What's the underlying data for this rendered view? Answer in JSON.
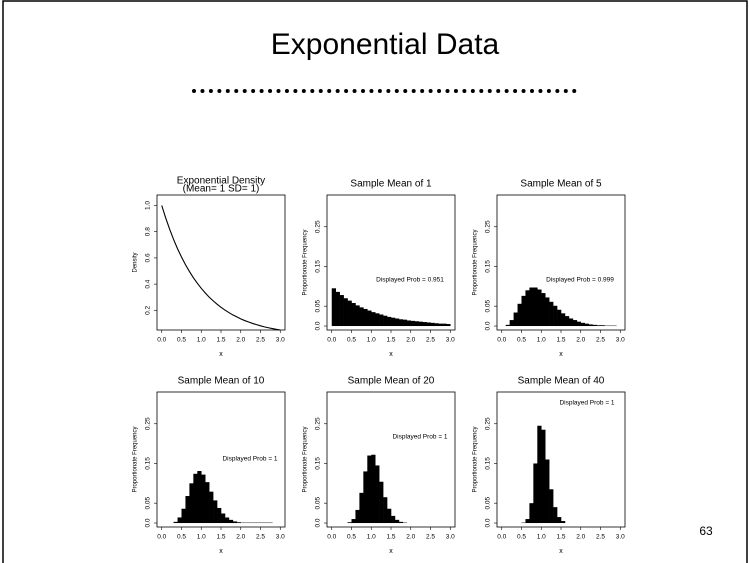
{
  "slide": {
    "title": "Exponential Data",
    "page_number": 63
  },
  "chart_data": [
    {
      "type": "line",
      "title": "Exponential Density",
      "subtitle": "(Mean= 1 SD= 1)",
      "x_label": "x",
      "y_label": "Density",
      "color": "#000000",
      "x": [
        0,
        0.1,
        0.2,
        0.3,
        0.4,
        0.5,
        0.6,
        0.7,
        0.8,
        0.9,
        1,
        1.1,
        1.2,
        1.3,
        1.4,
        1.5,
        1.6,
        1.7,
        1.8,
        1.9,
        2,
        2.1,
        2.2,
        2.3,
        2.4,
        2.5,
        2.6,
        2.7,
        2.8,
        2.9,
        3
      ],
      "values": [
        1,
        0.905,
        0.819,
        0.741,
        0.67,
        0.607,
        0.549,
        0.497,
        0.449,
        0.407,
        0.368,
        0.333,
        0.301,
        0.273,
        0.247,
        0.223,
        0.202,
        0.183,
        0.165,
        0.15,
        0.135,
        0.122,
        0.111,
        0.1,
        0.091,
        0.082,
        0.074,
        0.067,
        0.061,
        0.055,
        0.05
      ],
      "xlim": [
        -0.12,
        3.12
      ],
      "ylim": [
        0.05,
        1.08
      ],
      "xticks": [
        {
          "value": 0,
          "label": "0.0"
        },
        0.5,
        {
          "value": 1,
          "label": "1.0"
        },
        1.5,
        {
          "value": 2,
          "label": "2.0"
        },
        2.5,
        {
          "value": 3,
          "label": "3.0"
        }
      ],
      "yticks": [
        0.2,
        0.4,
        0.6,
        0.8,
        {
          "value": 1,
          "label": "1.0"
        }
      ]
    },
    {
      "type": "histogram",
      "title": "Sample Mean of 1",
      "x_label": "x",
      "y_label": "Proportionate Frequency",
      "annotation": "Displayed Prob = 0.951",
      "color": "#000000",
      "bins": [
        0,
        0.1,
        0.2,
        0.3,
        0.4,
        0.5,
        0.6,
        0.7,
        0.8,
        0.9,
        1,
        1.1,
        1.2,
        1.3,
        1.4,
        1.5,
        1.6,
        1.7,
        1.8,
        1.9,
        2,
        2.1,
        2.2,
        2.3,
        2.4,
        2.5,
        2.6,
        2.7,
        2.8,
        2.9,
        3
      ],
      "values": [
        0.095,
        0.086,
        0.078,
        0.07,
        0.064,
        0.058,
        0.052,
        0.047,
        0.043,
        0.039,
        0.035,
        0.032,
        0.029,
        0.026,
        0.023,
        0.021,
        0.019,
        0.017,
        0.016,
        0.014,
        0.013,
        0.012,
        0.011,
        0.01,
        0.009,
        0.008,
        0.007,
        0.006,
        0.006,
        0.005
      ],
      "xlim": [
        -0.12,
        3.12
      ],
      "ylim": [
        -0.01,
        0.33
      ],
      "xticks": [
        {
          "value": 0,
          "label": "0.0"
        },
        0.5,
        {
          "value": 1,
          "label": "1.0"
        },
        1.5,
        {
          "value": 2,
          "label": "2.0"
        },
        2.5,
        {
          "value": 3,
          "label": "3.0"
        }
      ],
      "yticks": [
        {
          "value": 0,
          "label": "0.0"
        },
        0.05,
        0.15,
        0.25
      ]
    },
    {
      "type": "histogram",
      "title": "Sample Mean of 5",
      "x_label": "x",
      "y_label": "Proportionate Frequency",
      "annotation": "Displayed Prob = 0.999",
      "color": "#000000",
      "bins": [
        0,
        0.1,
        0.2,
        0.3,
        0.4,
        0.5,
        0.6,
        0.7,
        0.8,
        0.9,
        1,
        1.1,
        1.2,
        1.3,
        1.4,
        1.5,
        1.6,
        1.7,
        1.8,
        1.9,
        2,
        2.1,
        2.2,
        2.3,
        2.4,
        2.5,
        2.6,
        2.7,
        2.8,
        2.9,
        3
      ],
      "values": [
        0,
        0.003,
        0.015,
        0.034,
        0.056,
        0.076,
        0.09,
        0.097,
        0.097,
        0.092,
        0.083,
        0.072,
        0.061,
        0.051,
        0.041,
        0.032,
        0.025,
        0.019,
        0.015,
        0.011,
        0.008,
        0.006,
        0.004,
        0.003,
        0.002,
        0.002,
        0.001,
        0.001,
        0.001,
        0
      ],
      "xlim": [
        -0.12,
        3.12
      ],
      "ylim": [
        -0.01,
        0.33
      ],
      "xticks": [
        {
          "value": 0,
          "label": "0.0"
        },
        0.5,
        {
          "value": 1,
          "label": "1.0"
        },
        1.5,
        {
          "value": 2,
          "label": "2.0"
        },
        2.5,
        {
          "value": 3,
          "label": "3.0"
        }
      ],
      "yticks": [
        {
          "value": 0,
          "label": "0.0"
        },
        0.05,
        0.15,
        0.25
      ]
    },
    {
      "type": "histogram",
      "title": "Sample Mean of 10",
      "x_label": "x",
      "y_label": "Proportionate Frequency",
      "annotation": "Displayed Prob = 1",
      "color": "#000000",
      "bins": [
        0,
        0.1,
        0.2,
        0.3,
        0.4,
        0.5,
        0.6,
        0.7,
        0.8,
        0.9,
        1,
        1.1,
        1.2,
        1.3,
        1.4,
        1.5,
        1.6,
        1.7,
        1.8,
        1.9,
        2,
        2.1,
        2.2,
        2.3,
        2.4,
        2.5,
        2.6,
        2.7,
        2.8,
        2.9,
        3
      ],
      "values": [
        0,
        0,
        0,
        0.003,
        0.014,
        0.036,
        0.068,
        0.1,
        0.124,
        0.131,
        0.122,
        0.103,
        0.079,
        0.057,
        0.038,
        0.024,
        0.014,
        0.008,
        0.004,
        0.002,
        0.001,
        0.001,
        0.001,
        0.001,
        0.001,
        0.001,
        0.001,
        0.001,
        0,
        0
      ],
      "xlim": [
        -0.12,
        3.12
      ],
      "ylim": [
        -0.01,
        0.33
      ],
      "xticks": [
        {
          "value": 0,
          "label": "0.0"
        },
        0.5,
        {
          "value": 1,
          "label": "1.0"
        },
        1.5,
        {
          "value": 2,
          "label": "2.0"
        },
        2.5,
        {
          "value": 3,
          "label": "3.0"
        }
      ],
      "yticks": [
        {
          "value": 0,
          "label": "0.0"
        },
        0.05,
        0.15,
        0.25
      ]
    },
    {
      "type": "histogram",
      "title": "Sample Mean of 20",
      "x_label": "x",
      "y_label": "Proportionate Frequency",
      "annotation": "Displayed Prob = 1",
      "color": "#000000",
      "bins": [
        0,
        0.1,
        0.2,
        0.3,
        0.4,
        0.5,
        0.6,
        0.7,
        0.8,
        0.9,
        1,
        1.1,
        1.2,
        1.3,
        1.4,
        1.5,
        1.6,
        1.7,
        1.8,
        1.9,
        2,
        2.1,
        2.2,
        2.3,
        2.4,
        2.5,
        2.6,
        2.7,
        2.8,
        2.9,
        3
      ],
      "values": [
        0,
        0,
        0,
        0,
        0.002,
        0.01,
        0.033,
        0.076,
        0.13,
        0.17,
        0.172,
        0.145,
        0.104,
        0.065,
        0.036,
        0.018,
        0.008,
        0.003,
        0.001,
        0,
        0,
        0,
        0,
        0,
        0,
        0,
        0,
        0,
        0,
        0
      ],
      "xlim": [
        -0.12,
        3.12
      ],
      "ylim": [
        -0.01,
        0.33
      ],
      "xticks": [
        {
          "value": 0,
          "label": "0.0"
        },
        0.5,
        {
          "value": 1,
          "label": "1.0"
        },
        1.5,
        {
          "value": 2,
          "label": "2.0"
        },
        2.5,
        {
          "value": 3,
          "label": "3.0"
        }
      ],
      "yticks": [
        {
          "value": 0,
          "label": "0.0"
        },
        0.05,
        0.15,
        0.25
      ]
    },
    {
      "type": "histogram",
      "title": "Sample Mean of 40",
      "x_label": "x",
      "y_label": "Proportionate Frequency",
      "annotation": "Displayed Prob = 1",
      "color": "#000000",
      "bins": [
        0,
        0.1,
        0.2,
        0.3,
        0.4,
        0.5,
        0.6,
        0.7,
        0.8,
        0.9,
        1,
        1.1,
        1.2,
        1.3,
        1.4,
        1.5,
        1.6,
        1.7,
        1.8,
        1.9,
        2,
        2.1,
        2.2,
        2.3,
        2.4,
        2.5,
        2.6,
        2.7,
        2.8,
        2.9,
        3
      ],
      "values": [
        0,
        0,
        0,
        0,
        0,
        0.001,
        0.01,
        0.05,
        0.15,
        0.245,
        0.235,
        0.16,
        0.085,
        0.04,
        0.015,
        0.005,
        0,
        0,
        0,
        0,
        0,
        0,
        0,
        0,
        0,
        0,
        0,
        0,
        0,
        0
      ],
      "xlim": [
        -0.12,
        3.12
      ],
      "ylim": [
        -0.01,
        0.33
      ],
      "xticks": [
        {
          "value": 0,
          "label": "0.0"
        },
        0.5,
        {
          "value": 1,
          "label": "1.0"
        },
        1.5,
        {
          "value": 2,
          "label": "2.0"
        },
        2.5,
        {
          "value": 3,
          "label": "3.0"
        }
      ],
      "yticks": [
        {
          "value": 0,
          "label": "0.0"
        },
        0.05,
        0.15,
        0.25
      ]
    }
  ]
}
